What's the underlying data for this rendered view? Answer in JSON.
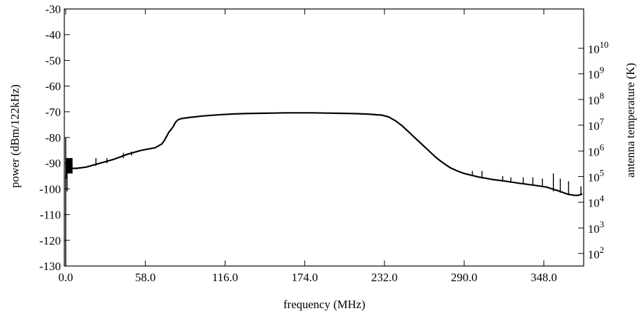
{
  "chart_data": {
    "type": "line",
    "xlabel": "frequency (MHz)",
    "ylabel": "power (dBm/122kHz)",
    "y2label": "antenna temperature (K)",
    "xlim": [
      -1,
      377
    ],
    "ylim": [
      -130,
      -30
    ],
    "xticks": [
      0,
      58,
      116,
      174,
      232,
      290,
      348
    ],
    "xtick_labels": [
      "0.0",
      "58.0",
      "116.0",
      "174.0",
      "232.0",
      "290.0",
      "348.0"
    ],
    "yticks": [
      -130,
      -120,
      -110,
      -100,
      -90,
      -80,
      -70,
      -60,
      -50,
      -40,
      -30
    ],
    "ytick_labels": [
      "-130",
      "-120",
      "-110",
      "-100",
      "-90",
      "-80",
      "-70",
      "-60",
      "-50",
      "-40",
      "-30"
    ],
    "y2ticks": [
      {
        "base": "10",
        "exp": "2",
        "y": -125.1
      },
      {
        "base": "10",
        "exp": "3",
        "y": -115.2
      },
      {
        "base": "10",
        "exp": "4",
        "y": -105.2
      },
      {
        "base": "10",
        "exp": "5",
        "y": -95.2
      },
      {
        "base": "10",
        "exp": "6",
        "y": -85.3
      },
      {
        "base": "10",
        "exp": "7",
        "y": -75.2
      },
      {
        "base": "10",
        "exp": "8",
        "y": -65.2
      },
      {
        "base": "10",
        "exp": "9",
        "y": -55.2
      },
      {
        "base": "10",
        "exp": "10",
        "y": -45.3
      }
    ],
    "grid": false,
    "series": [
      {
        "x": [
          0,
          1,
          2,
          4,
          8,
          15,
          25,
          35,
          45,
          55,
          60,
          65,
          70,
          72,
          75,
          78,
          80,
          82,
          84,
          86,
          90,
          100,
          110,
          120,
          130,
          140,
          150,
          160,
          170,
          180,
          190,
          200,
          210,
          220,
          230,
          235,
          240,
          245,
          250,
          255,
          260,
          265,
          270,
          275,
          280,
          285,
          290,
          300,
          310,
          320,
          330,
          340,
          350,
          360,
          365,
          370,
          373,
          376
        ],
        "y": [
          -96,
          -92,
          -91,
          -92,
          -92,
          -91.5,
          -90,
          -88.5,
          -86.5,
          -85,
          -84.5,
          -84,
          -82.5,
          -81,
          -78,
          -76,
          -74,
          -73,
          -72.7,
          -72.5,
          -72.2,
          -71.6,
          -71.2,
          -70.9,
          -70.7,
          -70.6,
          -70.5,
          -70.4,
          -70.4,
          -70.4,
          -70.5,
          -70.6,
          -70.7,
          -70.9,
          -71.3,
          -72,
          -73.5,
          -75.5,
          -78,
          -80.5,
          -83,
          -85.5,
          -88,
          -90,
          -91.8,
          -93,
          -94,
          -95.3,
          -96.3,
          -97,
          -97.8,
          -98.5,
          -99.3,
          -101,
          -102,
          -102.5,
          -102.5,
          -102
        ]
      }
    ],
    "spikes": [
      {
        "x": 0,
        "y0": -80,
        "y1": -130
      },
      {
        "x": 1,
        "y0": -88,
        "y1": -101
      },
      {
        "x": 22,
        "y0": -88,
        "y1": -91
      },
      {
        "x": 30,
        "y0": -88,
        "y1": -90
      },
      {
        "x": 42,
        "y0": -86,
        "y1": -88
      },
      {
        "x": 48,
        "y0": -85.5,
        "y1": -87
      },
      {
        "x": 296,
        "y0": -93,
        "y1": -95
      },
      {
        "x": 303,
        "y0": -93,
        "y1": -96
      },
      {
        "x": 318,
        "y0": -95,
        "y1": -97
      },
      {
        "x": 324,
        "y0": -95.5,
        "y1": -97.5
      },
      {
        "x": 333,
        "y0": -95.5,
        "y1": -98
      },
      {
        "x": 340,
        "y0": -95.5,
        "y1": -98.5
      },
      {
        "x": 347,
        "y0": -96,
        "y1": -99
      },
      {
        "x": 355,
        "y0": -94,
        "y1": -101
      },
      {
        "x": 360,
        "y0": -96,
        "y1": -101.5
      },
      {
        "x": 366,
        "y0": -97,
        "y1": -102.5
      },
      {
        "x": 375,
        "y0": -99,
        "y1": -102.5
      }
    ]
  }
}
